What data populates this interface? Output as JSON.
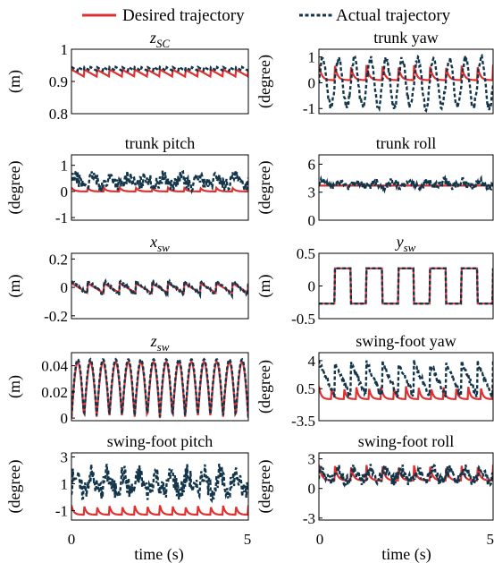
{
  "colors": {
    "desired": "#e03030",
    "actual": "#13354a"
  },
  "legend": {
    "desired_label": "Desired trajectory",
    "actual_label": "Actual trajectory"
  },
  "xaxis": {
    "label": "time (s)",
    "ticks": [
      "0",
      "5"
    ],
    "xlim": [
      0,
      5
    ]
  },
  "chart_data": [
    {
      "type": "line",
      "title_italic": true,
      "title_base": "z",
      "title_sub": "SC",
      "ylabel": "(m)",
      "ylim": [
        0.8,
        1.0
      ],
      "yticks": [
        1,
        0.9,
        0.8
      ],
      "ytick_labels": [
        "1",
        "0.9",
        "0.8"
      ],
      "series": [
        {
          "name": "Desired trajectory",
          "pattern": "sawtooth",
          "cycles": 14,
          "low": 0.915,
          "high": 0.937
        },
        {
          "name": "Actual trajectory",
          "pattern": "sawtooth",
          "cycles": 28,
          "low": 0.933,
          "high": 0.945
        }
      ]
    },
    {
      "type": "line",
      "title": "trunk yaw",
      "ylabel": "(degree)",
      "ylim": [
        -1.2,
        1.3
      ],
      "yticks": [
        1,
        0,
        -1
      ],
      "ytick_labels": [
        "1",
        "0",
        "-1"
      ],
      "series": [
        {
          "name": "Desired trajectory",
          "pattern": "spiky",
          "cycles": 11,
          "base": 0.1,
          "amp": 0.6
        },
        {
          "name": "Actual trajectory",
          "pattern": "sine",
          "cycles": 11,
          "center": 0.0,
          "amp": 0.95,
          "noise": 0.15
        }
      ]
    },
    {
      "type": "line",
      "title": "trunk pitch",
      "ylabel": "(degree)",
      "ylim": [
        -1.1,
        1.4
      ],
      "yticks": [
        1,
        0,
        -1
      ],
      "ytick_labels": [
        "1",
        "0",
        "-1"
      ],
      "series": [
        {
          "name": "Desired trajectory",
          "pattern": "spiky",
          "cycles": 11,
          "base": 0.0,
          "amp": 0.15
        },
        {
          "name": "Actual trajectory",
          "pattern": "noisy",
          "cycles": 10,
          "center": 0.35,
          "amp": 0.3,
          "noise": 0.25
        }
      ]
    },
    {
      "type": "line",
      "title": "trunk roll",
      "ylabel": "(degree)",
      "ylim": [
        0,
        7
      ],
      "yticks": [
        6,
        3,
        0
      ],
      "ytick_labels": [
        "6",
        "3",
        "0"
      ],
      "series": [
        {
          "name": "Desired trajectory",
          "pattern": "flat",
          "value": 3.7
        },
        {
          "name": "Actual trajectory",
          "pattern": "noisy",
          "cycles": 10,
          "center": 3.8,
          "amp": 0.5,
          "noise": 0.4
        }
      ]
    },
    {
      "type": "line",
      "title_italic": true,
      "title_base": "x",
      "title_sub": "sw",
      "ylabel": "(m)",
      "ylim": [
        -0.22,
        0.24
      ],
      "yticks": [
        0.2,
        0,
        -0.2
      ],
      "ytick_labels": [
        "0.2",
        "0",
        "-0.2"
      ],
      "series": [
        {
          "name": "Desired trajectory",
          "pattern": "sawtooth",
          "cycles": 11,
          "low": -0.04,
          "high": 0.03
        },
        {
          "name": "Actual trajectory",
          "pattern": "sawtooth",
          "cycles": 11,
          "low": -0.05,
          "high": 0.045,
          "noise": 0.01
        }
      ]
    },
    {
      "type": "line",
      "title_italic": true,
      "title_base": "y",
      "title_sub": "sw",
      "ylabel": "(m)",
      "ylim": [
        -0.5,
        0.5
      ],
      "yticks": [
        0.5,
        0,
        -0.5
      ],
      "ytick_labels": [
        "0.5",
        "0",
        "-0.5"
      ],
      "series": [
        {
          "name": "Desired trajectory",
          "pattern": "square",
          "cycles": 5.5,
          "low": -0.27,
          "high": 0.27
        },
        {
          "name": "Actual trajectory",
          "pattern": "square",
          "cycles": 5.5,
          "low": -0.27,
          "high": 0.27
        }
      ]
    },
    {
      "type": "line",
      "title_italic": true,
      "title_base": "z",
      "title_sub": "sw",
      "ylabel": "(m)",
      "ylim": [
        -0.002,
        0.05
      ],
      "yticks": [
        0.04,
        0.02,
        0
      ],
      "ytick_labels": [
        "0.04",
        "0.02",
        "0"
      ],
      "series": [
        {
          "name": "Desired trajectory",
          "pattern": "arch",
          "cycles": 14,
          "low": 0.0,
          "high": 0.043
        },
        {
          "name": "Actual trajectory",
          "pattern": "arch",
          "cycles": 14,
          "low": 0.001,
          "high": 0.045
        }
      ]
    },
    {
      "type": "line",
      "title": "swing-foot yaw",
      "ylabel": "(degree)",
      "ylim": [
        -3.5,
        5
      ],
      "yticks": [
        4,
        0.5,
        -3.5
      ],
      "ytick_labels": [
        "4",
        "0.5",
        "-3.5"
      ],
      "series": [
        {
          "name": "Desired trajectory",
          "pattern": "spiky",
          "cycles": 14,
          "base": -0.8,
          "amp": 1.6
        },
        {
          "name": "Actual trajectory",
          "pattern": "sawtooth",
          "cycles": 11,
          "low": -0.5,
          "high": 3.8,
          "noise": 0.4
        }
      ]
    },
    {
      "type": "line",
      "title": "swing-foot pitch",
      "ylabel": "(degree)",
      "ylim": [
        -1.7,
        3.3
      ],
      "yticks": [
        3,
        1,
        -1
      ],
      "ytick_labels": [
        "3",
        "1",
        "-1"
      ],
      "series": [
        {
          "name": "Desired trajectory",
          "pattern": "spiky",
          "cycles": 14,
          "base": -1.3,
          "amp": 0.7
        },
        {
          "name": "Actual trajectory",
          "pattern": "noisy",
          "cycles": 11,
          "center": 0.9,
          "amp": 1.2,
          "noise": 0.8
        }
      ]
    },
    {
      "type": "line",
      "title": "swing-foot roll",
      "ylabel": "(degree)",
      "ylim": [
        -3.2,
        3.6
      ],
      "yticks": [
        3,
        0,
        -3
      ],
      "ytick_labels": [
        "3",
        "0",
        "-3"
      ],
      "series": [
        {
          "name": "Desired trajectory",
          "pattern": "spiky",
          "cycles": 11,
          "base": 0.8,
          "amp": 1.6
        },
        {
          "name": "Actual trajectory",
          "pattern": "noisy",
          "cycles": 11,
          "center": 1.2,
          "amp": 1.0,
          "noise": 0.6
        }
      ]
    }
  ]
}
